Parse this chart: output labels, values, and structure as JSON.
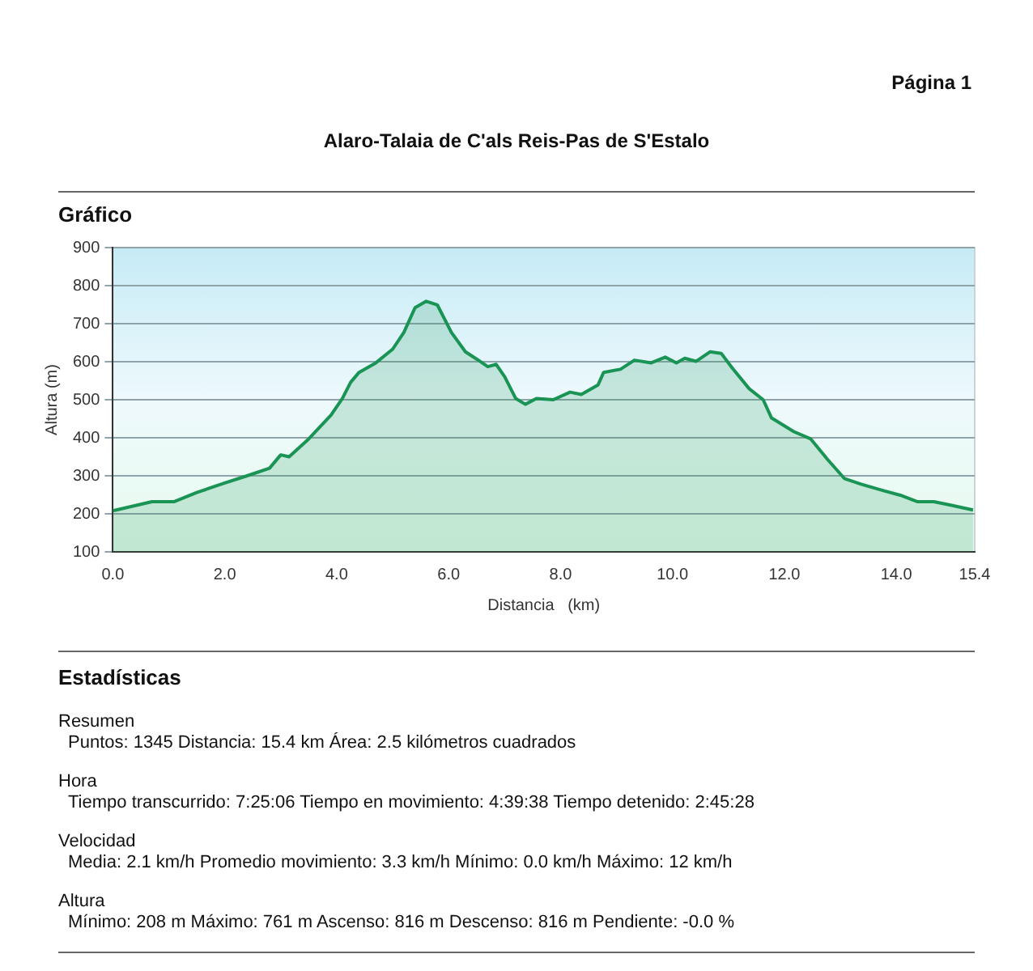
{
  "chart_data": {
    "type": "area",
    "title": "Alaro-Talaia de C'als Reis-Pas de S'Estalo",
    "subtitle": "Gráfico",
    "xlabel": "Distancia   (km)",
    "ylabel": "Altura (m)",
    "x": [
      0,
      0.7,
      1.1,
      1.5,
      2.0,
      2.4,
      2.8,
      3.0,
      3.15,
      3.5,
      3.9,
      4.1,
      4.25,
      4.4,
      4.7,
      5.0,
      5.2,
      5.4,
      5.6,
      5.8,
      6.05,
      6.3,
      6.5,
      6.7,
      6.85,
      7.0,
      7.2,
      7.37,
      7.57,
      7.87,
      8.17,
      8.37,
      8.67,
      8.77,
      9.07,
      9.32,
      9.62,
      9.87,
      10.07,
      10.22,
      10.42,
      10.67,
      10.87,
      11.07,
      11.37,
      11.62,
      11.77,
      12.17,
      12.47,
      12.77,
      13.07,
      13.37,
      13.77,
      14.07,
      14.37,
      14.67,
      14.97,
      15.37
    ],
    "series": [
      {
        "color": "#1a9455",
        "values": [
          208,
          232,
          232,
          256,
          281,
          300,
          320,
          355,
          350,
          397,
          460,
          503,
          546,
          572,
          597,
          633,
          677,
          742,
          759,
          749,
          677,
          626,
          607,
          587,
          593,
          561,
          503,
          488,
          503,
          500,
          520,
          514,
          539,
          572,
          580,
          604,
          597,
          612,
          597,
          609,
          601,
          626,
          622,
          583,
          529,
          500,
          452,
          416,
          397,
          343,
          293,
          278,
          261,
          249,
          232,
          232,
          223,
          210
        ]
      }
    ],
    "xlim": [
      0,
      15.4
    ],
    "xticks": [
      {
        "value": 0,
        "label": "0.0"
      },
      {
        "value": 2,
        "label": "2.0"
      },
      {
        "value": 4,
        "label": "4.0"
      },
      {
        "value": 6,
        "label": "6.0"
      },
      {
        "value": 8,
        "label": "8.0"
      },
      {
        "value": 10,
        "label": "10.0"
      },
      {
        "value": 12,
        "label": "12.0"
      },
      {
        "value": 14,
        "label": "14.0"
      },
      15.4
    ],
    "ylim": [
      100,
      900
    ],
    "yticks": [
      100,
      200,
      300,
      400,
      500,
      600,
      700,
      800,
      900
    ],
    "grid": "y",
    "legend": false,
    "marker": "none",
    "line_style": "solid",
    "annotations": [
      "Página 1",
      "Estadísticas",
      "Resumen",
      "Puntos: 1345  Distancia: 15.4 km  Área: 2.5 kilómetros cuadrados",
      "Hora",
      "Tiempo transcurrido: 7:25:06  Tiempo en movimiento: 4:39:38  Tiempo detenido: 2:45:28",
      "Velocidad",
      "Media: 2.1 km/h  Promedio movimiento: 3.3 km/h  Mínimo: 0.0 km/h  Máximo: 12 km/h",
      "Altura",
      "Mínimo: 208 m  Máximo: 761 m  Ascenso: 816 m  Descenso: 816 m  Pendiente: -0.0 %"
    ]
  }
}
